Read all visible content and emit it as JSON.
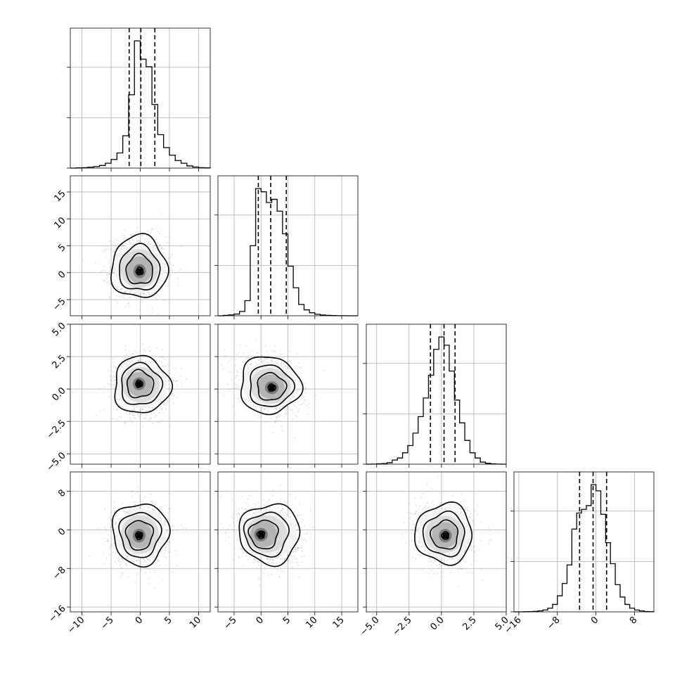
{
  "chart_data": {
    "type": "corner",
    "grid": true,
    "params": [
      {
        "range": [
          -12,
          12
        ],
        "ticks": [
          -10,
          -5,
          0,
          5,
          10
        ],
        "tick_labels": [
          "−10",
          "−5",
          "0",
          "5",
          "10"
        ]
      },
      {
        "range": [
          -8,
          18
        ],
        "ticks": [
          -5,
          0,
          5,
          10,
          15
        ],
        "tick_labels": [
          "−5",
          "0",
          "5",
          "10",
          "15"
        ]
      },
      {
        "range": [
          -5.8,
          5.0
        ],
        "ticks": [
          -5.0,
          -2.5,
          0.0,
          2.5,
          5.0
        ],
        "tick_labels": [
          "−5.0",
          "−2.5",
          "0.0",
          "2.5",
          "5.0"
        ]
      },
      {
        "range": [
          -17,
          12
        ],
        "ticks": [
          -16,
          -8,
          0,
          8
        ],
        "tick_labels": [
          "−16",
          "−8",
          "0",
          "8"
        ]
      }
    ],
    "quantiles": [
      [
        -1.9,
        0.1,
        2.5
      ],
      [
        -0.5,
        1.8,
        4.7
      ],
      [
        -0.85,
        0.2,
        1.05
      ],
      [
        -3.4,
        -0.6,
        2.2
      ]
    ],
    "hist": [
      {
        "bin_edges": [
          -12,
          -11,
          -10,
          -9,
          -8,
          -7,
          -6,
          -5,
          -4,
          -3,
          -2,
          -1,
          0,
          1,
          2,
          3,
          4,
          5,
          6,
          7,
          8,
          9,
          10,
          11,
          12
        ],
        "counts": [
          0,
          2,
          4,
          8,
          14,
          24,
          45,
          80,
          140,
          300,
          680,
          1180,
          1010,
          940,
          590,
          310,
          190,
          120,
          70,
          45,
          20,
          10,
          4,
          2
        ]
      },
      {
        "bin_edges": [
          -8,
          -7,
          -6,
          -5,
          -4,
          -3,
          -2,
          -1,
          0,
          1,
          2,
          3,
          4,
          5,
          6,
          7,
          8,
          9,
          10,
          11,
          12,
          13,
          14,
          15,
          16,
          17,
          18
        ],
        "counts": [
          0,
          4,
          8,
          16,
          40,
          140,
          650,
          1180,
          1150,
          1050,
          1080,
          970,
          760,
          460,
          260,
          105,
          55,
          28,
          14,
          7,
          4,
          2,
          1,
          1,
          0,
          0
        ]
      },
      {
        "bin_edges": [
          -5.8,
          -5.4,
          -5.0,
          -4.6,
          -4.2,
          -3.8,
          -3.4,
          -3.0,
          -2.6,
          -2.2,
          -1.8,
          -1.4,
          -1.0,
          -0.6,
          -0.2,
          0.2,
          0.6,
          1.0,
          1.4,
          1.8,
          2.2,
          2.6,
          3.0,
          3.4,
          3.8,
          4.2,
          4.6,
          5.0
        ],
        "counts": [
          0,
          1,
          3,
          6,
          14,
          40,
          60,
          110,
          180,
          300,
          460,
          640,
          860,
          1110,
          1230,
          1150,
          900,
          620,
          400,
          230,
          110,
          60,
          20,
          8,
          3,
          1,
          0
        ]
      },
      {
        "bin_edges": [
          -17,
          -16,
          -15,
          -14,
          -13,
          -12,
          -11,
          -10,
          -9,
          -8,
          -7,
          -6,
          -5,
          -4,
          -3,
          -2,
          -1,
          0,
          1,
          2,
          3,
          4,
          5,
          6,
          7,
          8,
          9,
          10,
          11,
          12
        ],
        "counts": [
          0,
          0,
          1,
          2,
          4,
          8,
          15,
          30,
          60,
          130,
          230,
          380,
          670,
          800,
          830,
          860,
          1030,
          980,
          790,
          560,
          390,
          220,
          120,
          60,
          30,
          15,
          8,
          3,
          1
        ]
      }
    ],
    "pairs": [
      {
        "x": 0,
        "y": 1,
        "center": [
          -0.2,
          1.0
        ],
        "sigma": [
          2.4,
          2.9
        ],
        "rho": 0.0,
        "peak": [
          -0.1,
          0.3
        ]
      },
      {
        "x": 0,
        "y": 2,
        "center": [
          0.2,
          0.3
        ],
        "sigma": [
          2.4,
          1.1
        ],
        "rho": 0.0,
        "peak": [
          -0.2,
          0.4
        ]
      },
      {
        "x": 1,
        "y": 2,
        "center": [
          1.6,
          0.3
        ],
        "sigma": [
          2.8,
          1.1
        ],
        "rho": -0.3,
        "peak": [
          2.0,
          0.1
        ]
      },
      {
        "x": 0,
        "y": 3,
        "center": [
          0.0,
          -0.8
        ],
        "sigma": [
          2.4,
          3.2
        ],
        "rho": 0.0,
        "peak": [
          -0.2,
          -1.2
        ]
      },
      {
        "x": 1,
        "y": 3,
        "center": [
          1.6,
          -0.8
        ],
        "sigma": [
          2.8,
          3.1
        ],
        "rho": -0.1,
        "peak": [
          0.0,
          -1.0
        ]
      },
      {
        "x": 2,
        "y": 3,
        "center": [
          0.2,
          -0.8
        ],
        "sigma": [
          1.1,
          3.1
        ],
        "rho": -0.1,
        "peak": [
          0.3,
          -1.2
        ]
      }
    ]
  }
}
